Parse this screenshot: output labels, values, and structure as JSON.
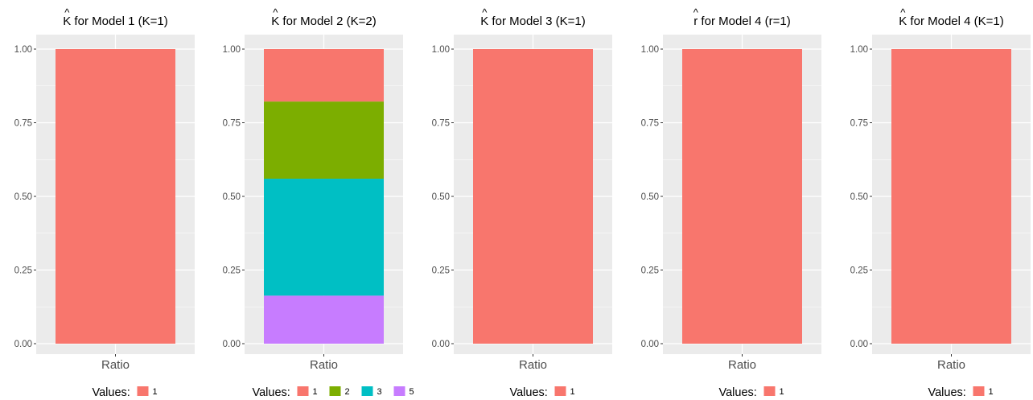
{
  "chart_data": [
    {
      "type": "bar",
      "stacked": true,
      "title_symbol": "K",
      "title_text": " for Model 1 (K=1)",
      "categories": [
        "Ratio"
      ],
      "series": [
        {
          "name": "1",
          "values": [
            1.0
          ]
        }
      ],
      "ylim": [
        0,
        1
      ],
      "yticks": [
        "0.00",
        "0.25",
        "0.50",
        "0.75",
        "1.00"
      ],
      "legend_title": "Values:",
      "legend": [
        "1"
      ],
      "grid": true,
      "legend_position": "bottom"
    },
    {
      "type": "bar",
      "stacked": true,
      "title_symbol": "K",
      "title_text": " for Model 2 (K=2)",
      "categories": [
        "Ratio"
      ],
      "series": [
        {
          "name": "1",
          "values": [
            0.178
          ]
        },
        {
          "name": "2",
          "values": [
            0.262
          ]
        },
        {
          "name": "3",
          "values": [
            0.397
          ]
        },
        {
          "name": "5",
          "values": [
            0.163
          ]
        }
      ],
      "ylim": [
        0,
        1
      ],
      "yticks": [
        "0.00",
        "0.25",
        "0.50",
        "0.75",
        "1.00"
      ],
      "legend_title": "Values:",
      "legend": [
        "1",
        "2",
        "3",
        "5"
      ],
      "grid": true,
      "legend_position": "bottom"
    },
    {
      "type": "bar",
      "stacked": true,
      "title_symbol": "K",
      "title_text": " for Model 3 (K=1)",
      "categories": [
        "Ratio"
      ],
      "series": [
        {
          "name": "1",
          "values": [
            1.0
          ]
        }
      ],
      "ylim": [
        0,
        1
      ],
      "yticks": [
        "0.00",
        "0.25",
        "0.50",
        "0.75",
        "1.00"
      ],
      "legend_title": "Values:",
      "legend": [
        "1"
      ],
      "grid": true,
      "legend_position": "bottom"
    },
    {
      "type": "bar",
      "stacked": true,
      "title_symbol": "r",
      "title_text": " for Model 4 (r=1)",
      "categories": [
        "Ratio"
      ],
      "series": [
        {
          "name": "1",
          "values": [
            1.0
          ]
        }
      ],
      "ylim": [
        0,
        1
      ],
      "yticks": [
        "0.00",
        "0.25",
        "0.50",
        "0.75",
        "1.00"
      ],
      "legend_title": "Values:",
      "legend": [
        "1"
      ],
      "grid": true,
      "legend_position": "bottom"
    },
    {
      "type": "bar",
      "stacked": true,
      "title_symbol": "K",
      "title_text": " for Model 4 (K=1)",
      "categories": [
        "Ratio"
      ],
      "series": [
        {
          "name": "1",
          "values": [
            1.0
          ]
        }
      ],
      "ylim": [
        0,
        1
      ],
      "yticks": [
        "0.00",
        "0.25",
        "0.50",
        "0.75",
        "1.00"
      ],
      "legend_title": "Values:",
      "legend": [
        "1"
      ],
      "grid": true,
      "legend_position": "bottom"
    }
  ],
  "colors": {
    "1": "#F8766D",
    "2": "#7CAE00",
    "3": "#00BFC4",
    "5": "#C77CFF",
    "panel": "#EBEBEB",
    "grid": "#FFFFFF"
  }
}
